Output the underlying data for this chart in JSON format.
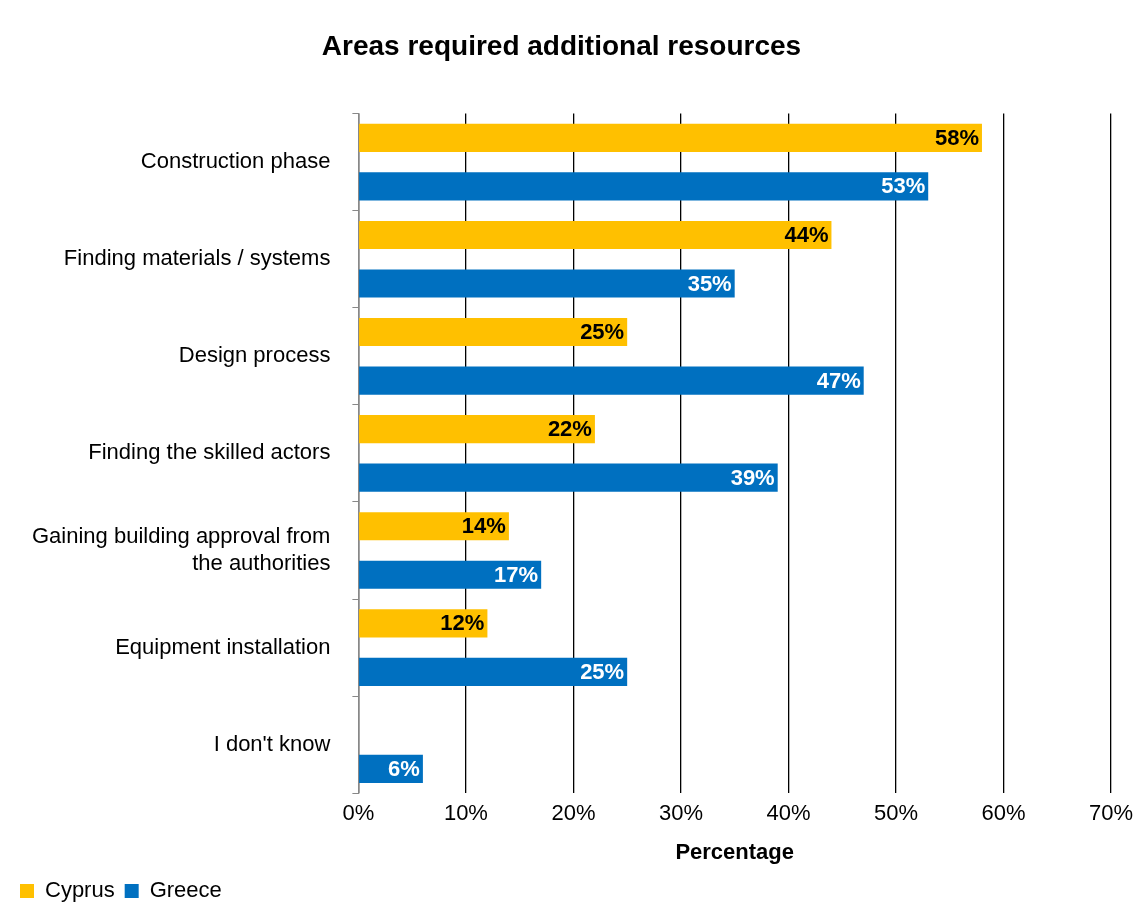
{
  "chart_data": {
    "type": "bar",
    "orientation": "horizontal",
    "title": "Areas required additional resources",
    "xlabel": "Percentage",
    "categories": [
      "Construction phase",
      "Finding materials / systems",
      "Design process",
      "Finding the skilled actors",
      "Gaining building approval from the authorities",
      "Equipment installation",
      "I don't know"
    ],
    "series": [
      {
        "name": "Cyprus",
        "color": "#ffc000",
        "values": [
          58,
          44,
          25,
          22,
          14,
          12,
          null
        ],
        "value_labels": [
          "58%",
          "44%",
          "25%",
          "22%",
          "14%",
          "12%",
          null
        ]
      },
      {
        "name": "Greece",
        "color": "#0070c0",
        "values": [
          53,
          35,
          47,
          39,
          17,
          25,
          6
        ],
        "value_labels": [
          "53%",
          "35%",
          "47%",
          "39%",
          "17%",
          "25%",
          "6%"
        ]
      }
    ],
    "xlim": [
      0,
      70
    ],
    "xticks": [
      {
        "value": 0,
        "label": "0%"
      },
      {
        "value": 10,
        "label": "10%"
      },
      {
        "value": 20,
        "label": "20%"
      },
      {
        "value": 30,
        "label": "30%"
      },
      {
        "value": 40,
        "label": "40%"
      },
      {
        "value": 50,
        "label": "50%"
      },
      {
        "value": 60,
        "label": "60%"
      },
      {
        "value": 70,
        "label": "70%"
      }
    ],
    "grid": "x",
    "legend": "bottom left"
  }
}
